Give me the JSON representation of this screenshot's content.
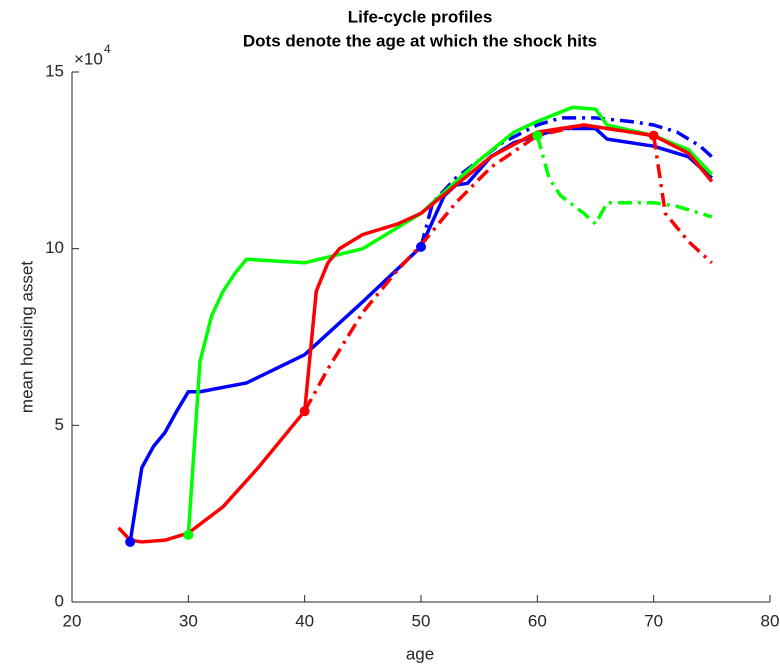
{
  "chart_data": {
    "type": "line",
    "title": "Life-cycle profiles",
    "subtitle": "Dots denote the age at which the shock hits",
    "x_label": "age",
    "y_label": "mean housing asset",
    "y_multiplier": "×10",
    "y_exponent": "4",
    "xlim": [
      20,
      80
    ],
    "xticks": [
      20,
      30,
      40,
      50,
      60,
      70,
      80
    ],
    "ylim": [
      0,
      15
    ],
    "yticks": [
      0,
      5,
      10,
      15
    ],
    "series": [
      {
        "color": "#0000ff",
        "style": "solid",
        "x": [
          25,
          26,
          27,
          28,
          29,
          30,
          31,
          35,
          40,
          45,
          50,
          52,
          53,
          54,
          56,
          58,
          60,
          62,
          64,
          65,
          66,
          70,
          73,
          75
        ],
        "values": [
          1.7,
          3.8,
          4.4,
          4.8,
          5.4,
          5.95,
          5.95,
          6.2,
          7.0,
          8.5,
          10.05,
          11.5,
          11.8,
          11.85,
          12.6,
          13.0,
          13.2,
          13.4,
          13.4,
          13.4,
          13.1,
          12.9,
          12.6,
          12.0
        ]
      },
      {
        "color": "#0000ff",
        "style": "dashdot",
        "x": [
          50,
          51,
          53,
          55,
          57,
          60,
          62,
          65,
          68,
          70,
          72,
          74,
          75
        ],
        "values": [
          10.05,
          11.3,
          12.0,
          12.5,
          13.0,
          13.5,
          13.7,
          13.7,
          13.6,
          13.5,
          13.3,
          12.9,
          12.6
        ]
      },
      {
        "color": "#00ff00",
        "style": "solid",
        "x": [
          30,
          31,
          32,
          33,
          34,
          35,
          40,
          45,
          50,
          55,
          58,
          60,
          63,
          65,
          66,
          70,
          73,
          75
        ],
        "values": [
          1.9,
          6.8,
          8.1,
          8.8,
          9.3,
          9.7,
          9.6,
          10.0,
          11.0,
          12.5,
          13.3,
          13.6,
          14.0,
          13.95,
          13.5,
          13.2,
          12.8,
          12.1
        ]
      },
      {
        "color": "#00ff00",
        "style": "dashdot",
        "x": [
          60,
          61,
          62,
          64,
          65,
          66,
          70,
          72,
          75
        ],
        "values": [
          13.2,
          12.0,
          11.5,
          11.0,
          10.7,
          11.3,
          11.3,
          11.2,
          10.9
        ]
      },
      {
        "color": "#ff0000",
        "style": "solid",
        "x": [
          24,
          25,
          26,
          28,
          30,
          33,
          36,
          40,
          41,
          42,
          43,
          45,
          48,
          50,
          53,
          56,
          60,
          64,
          66,
          70,
          73,
          75
        ],
        "values": [
          2.1,
          1.75,
          1.7,
          1.75,
          1.95,
          2.7,
          3.8,
          5.4,
          8.8,
          9.6,
          10.0,
          10.4,
          10.7,
          11.0,
          11.8,
          12.6,
          13.3,
          13.5,
          13.4,
          13.2,
          12.7,
          11.9
        ]
      },
      {
        "color": "#ff0000",
        "style": "dashdot",
        "x": [
          40,
          42,
          45,
          48,
          50,
          53,
          56,
          60,
          64,
          66,
          70
        ],
        "values": [
          5.4,
          6.6,
          8.2,
          9.4,
          10.1,
          11.3,
          12.3,
          13.2,
          13.5,
          13.4,
          13.2
        ]
      },
      {
        "color": "#ff0000",
        "style": "dashdot",
        "x": [
          70,
          71,
          72,
          73,
          74,
          75
        ],
        "values": [
          13.2,
          11.0,
          10.6,
          10.2,
          9.9,
          9.6
        ]
      },
      {
        "color": "#0000ff",
        "style": "dot",
        "x": [
          25,
          50
        ],
        "values": [
          1.7,
          10.05
        ]
      },
      {
        "color": "#00ff00",
        "style": "dot",
        "x": [
          30,
          60
        ],
        "values": [
          1.9,
          13.2
        ]
      },
      {
        "color": "#ff0000",
        "style": "dot",
        "x": [
          40,
          70
        ],
        "values": [
          5.4,
          13.2
        ]
      }
    ]
  }
}
